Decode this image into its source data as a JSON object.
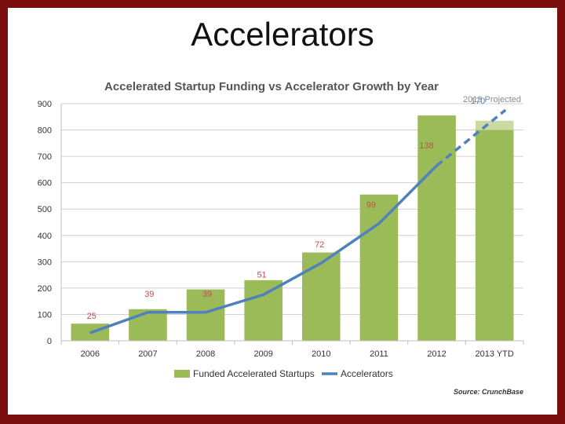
{
  "slide": {
    "title": "Accelerators"
  },
  "chart_data": {
    "type": "bar",
    "title": "Accelerated Startup Funding vs Accelerator Growth by Year",
    "categories": [
      "2006",
      "2007",
      "2008",
      "2009",
      "2010",
      "2011",
      "2012",
      "2013 YTD"
    ],
    "ylim": [
      0,
      900
    ],
    "yticks": [
      0,
      100,
      200,
      300,
      400,
      500,
      600,
      700,
      800,
      900
    ],
    "series": [
      {
        "name": "Funded Accelerated Startups",
        "type": "bar",
        "values": [
          65,
          120,
          195,
          230,
          335,
          555,
          855,
          800
        ],
        "color": "#9bbb59"
      },
      {
        "name": "Accelerators",
        "type": "line",
        "values": [
          25,
          39,
          39,
          51,
          72,
          99,
          138,
          170
        ],
        "plotted": [
          30,
          108,
          108,
          175,
          295,
          445,
          665,
          840
        ],
        "labels": [
          "25",
          "39",
          "39",
          "51",
          "72",
          "99",
          "138",
          "170"
        ],
        "color": "#4f81bd"
      }
    ],
    "projection": {
      "label": "2013 Projected",
      "category": "2013 YTD",
      "bar_value": 835,
      "bar_color": "#c9dba3"
    },
    "grid": true,
    "legend": "bottom",
    "source": "Source: CrunchBase",
    "label_color": "#c0504d",
    "projected_label_color": "#4f81bd"
  }
}
